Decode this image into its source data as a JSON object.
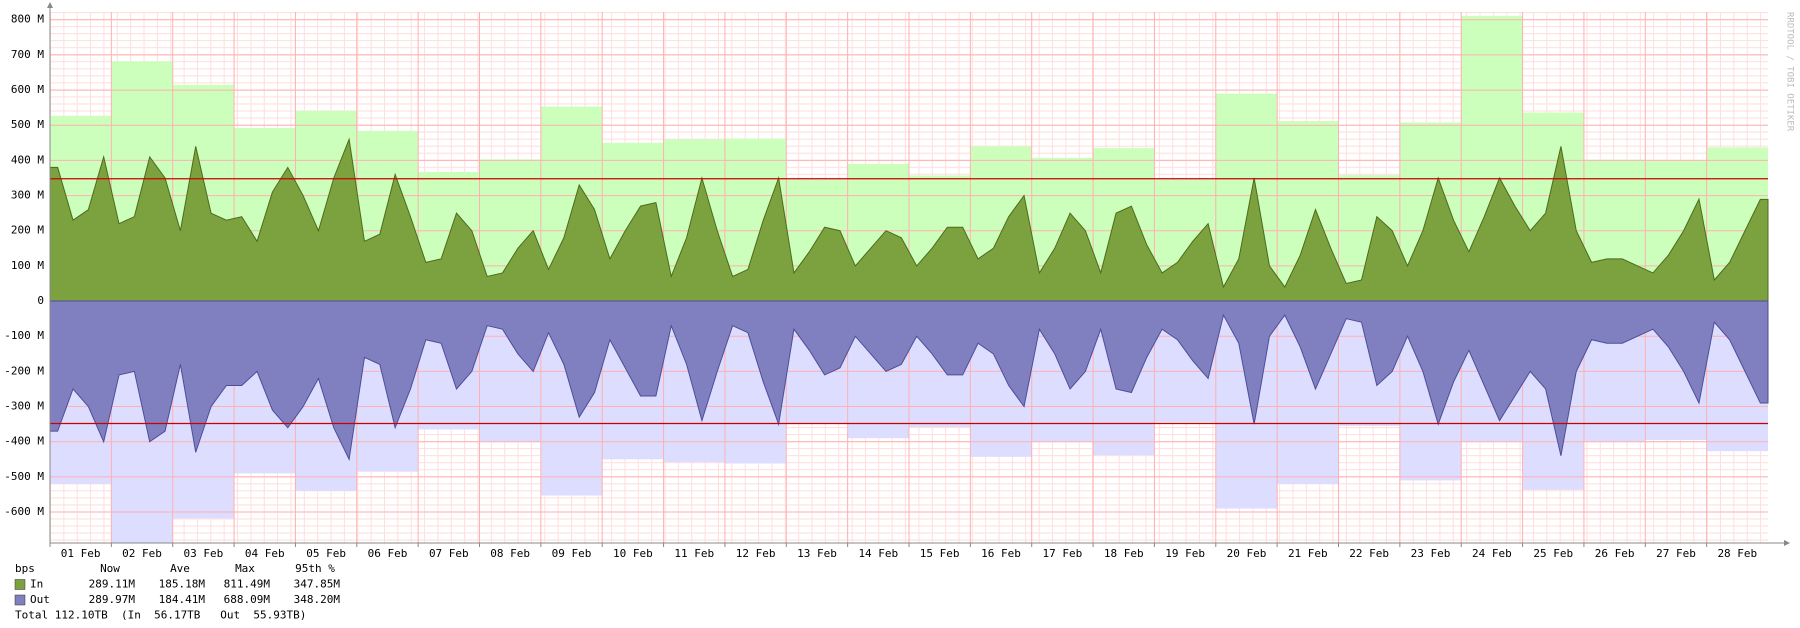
{
  "chart_data": {
    "type": "area",
    "categories": [
      "01 Feb",
      "02 Feb",
      "03 Feb",
      "04 Feb",
      "05 Feb",
      "06 Feb",
      "07 Feb",
      "08 Feb",
      "09 Feb",
      "10 Feb",
      "11 Feb",
      "12 Feb",
      "13 Feb",
      "14 Feb",
      "15 Feb",
      "16 Feb",
      "17 Feb",
      "18 Feb",
      "19 Feb",
      "20 Feb",
      "21 Feb",
      "22 Feb",
      "23 Feb",
      "24 Feb",
      "25 Feb",
      "26 Feb",
      "27 Feb",
      "28 Feb"
    ],
    "ylim": [
      -688,
      822
    ],
    "yticks": [
      {
        "value": 800,
        "label": "800 M"
      },
      {
        "value": 700,
        "label": "700 M"
      },
      {
        "value": 600,
        "label": "600 M"
      },
      {
        "value": 500,
        "label": "500 M"
      },
      {
        "value": 400,
        "label": "400 M"
      },
      {
        "value": 300,
        "label": "300 M"
      },
      {
        "value": 200,
        "label": "200 M"
      },
      {
        "value": 100,
        "label": "100 M"
      },
      0,
      {
        "value": -100,
        "label": "-100 M"
      },
      {
        "value": -200,
        "label": "-200 M"
      },
      {
        "value": -300,
        "label": "-300 M"
      },
      {
        "value": -400,
        "label": "-400 M"
      },
      {
        "value": -500,
        "label": "-500 M"
      },
      {
        "value": -600,
        "label": "-600 M"
      }
    ],
    "grid": true,
    "envelope": [
      {
        "color": "#ccffbb",
        "invert": false,
        "values": [
          527,
          682,
          615,
          492,
          541,
          484,
          367,
          403,
          553,
          450,
          460,
          462,
          345,
          390,
          357,
          440,
          407,
          435,
          345,
          590,
          512,
          358,
          508,
          811,
          536,
          402,
          398,
          437
        ]
      },
      {
        "color": "#ddddff",
        "invert": true,
        "values": [
          520,
          688,
          618,
          490,
          540,
          485,
          365,
          400,
          553,
          450,
          458,
          462,
          350,
          390,
          358,
          443,
          400,
          438,
          345,
          590,
          520,
          355,
          510,
          400,
          537,
          400,
          395,
          427
        ]
      }
    ],
    "series": [
      {
        "name": "In",
        "color": "#7ba23f",
        "stroke": "#4d6b1c",
        "invert": false,
        "values": [
          [
            380,
            230,
            260,
            410
          ],
          [
            220,
            240,
            410,
            350
          ],
          [
            200,
            440,
            250,
            230
          ],
          [
            240,
            170,
            310,
            380
          ],
          [
            300,
            200,
            350,
            460
          ],
          [
            170,
            190,
            360,
            240
          ],
          [
            110,
            120,
            250,
            200
          ],
          [
            70,
            80,
            150,
            200
          ],
          [
            90,
            180,
            330,
            260
          ],
          [
            120,
            200,
            270,
            280
          ],
          [
            70,
            180,
            350,
            200
          ],
          [
            70,
            90,
            230,
            350
          ],
          [
            80,
            140,
            210,
            200
          ],
          [
            100,
            150,
            200,
            180
          ],
          [
            100,
            150,
            210,
            210
          ],
          [
            120,
            150,
            240,
            300
          ],
          [
            80,
            150,
            250,
            200
          ],
          [
            80,
            250,
            270,
            160
          ],
          [
            80,
            110,
            170,
            220
          ],
          [
            40,
            120,
            350,
            100
          ],
          [
            40,
            130,
            260,
            150
          ],
          [
            50,
            60,
            240,
            200
          ],
          [
            100,
            200,
            350,
            230
          ],
          [
            140,
            240,
            350,
            270
          ],
          [
            200,
            250,
            440,
            200
          ],
          [
            110,
            120,
            120,
            100
          ],
          [
            80,
            130,
            200,
            290
          ],
          [
            60,
            110,
            200,
            289
          ]
        ],
        "stats": {
          "now": "289.11M",
          "ave": "185.18M",
          "max": "811.49M",
          "p95": {
            "value": 347.85,
            "label": "347.85M"
          }
        }
      },
      {
        "name": "Out",
        "color": "#8080c0",
        "stroke": "#4d4d99",
        "invert": true,
        "values": [
          [
            370,
            250,
            300,
            400
          ],
          [
            210,
            200,
            400,
            370
          ],
          [
            180,
            430,
            300,
            240
          ],
          [
            240,
            200,
            310,
            360
          ],
          [
            300,
            220,
            360,
            450
          ],
          [
            160,
            180,
            360,
            250
          ],
          [
            110,
            120,
            250,
            200
          ],
          [
            70,
            80,
            150,
            200
          ],
          [
            90,
            180,
            330,
            260
          ],
          [
            110,
            190,
            270,
            270
          ],
          [
            70,
            180,
            340,
            200
          ],
          [
            70,
            90,
            230,
            350
          ],
          [
            80,
            140,
            210,
            190
          ],
          [
            100,
            150,
            200,
            180
          ],
          [
            100,
            150,
            210,
            210
          ],
          [
            120,
            150,
            240,
            300
          ],
          [
            80,
            150,
            250,
            200
          ],
          [
            80,
            250,
            260,
            160
          ],
          [
            80,
            110,
            170,
            220
          ],
          [
            40,
            120,
            350,
            100
          ],
          [
            40,
            130,
            250,
            150
          ],
          [
            50,
            60,
            240,
            200
          ],
          [
            100,
            200,
            350,
            230
          ],
          [
            140,
            240,
            340,
            270
          ],
          [
            200,
            250,
            440,
            200
          ],
          [
            110,
            120,
            120,
            100
          ],
          [
            80,
            130,
            200,
            290
          ],
          [
            60,
            110,
            200,
            290
          ]
        ],
        "stats": {
          "now": "289.97M",
          "ave": "184.41M",
          "max": "688.09M",
          "p95": {
            "value": 348.2,
            "label": "348.20M"
          }
        }
      }
    ],
    "percentile_color": "#cc0000",
    "legend_headers": [
      "bps",
      "Now",
      "Ave",
      "Max",
      "95th %"
    ],
    "total": "Total 112.10TB  (In  56.17TB   Out  55.93TB)",
    "watermark": "RRDTOOL / TOBI OETIKER"
  }
}
